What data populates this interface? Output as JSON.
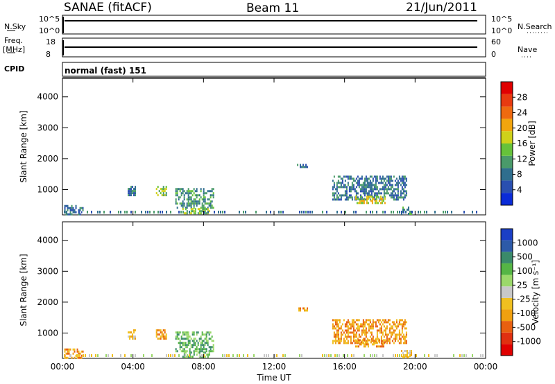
{
  "header": {
    "radar": "SANAE (fitACF)",
    "beam": "Beam 11",
    "date": "21/Jun/2011"
  },
  "param_panels": {
    "nsky_label": "N.Sky",
    "nsearch_label": "N.Search",
    "freq_label_1": "Freq.",
    "freq_label_2": "[MHz]",
    "nave_label": "Nave",
    "cpid_label": "CPID",
    "cpid_value": "normal (fast) 151",
    "noise_ticks_left": [
      "10^5",
      "10^0"
    ],
    "noise_ticks_right": [
      "10^5",
      "10^0"
    ],
    "freq_ticks": [
      "18",
      "8"
    ],
    "nave_ticks": [
      "60",
      "0"
    ]
  },
  "colors": {
    "power_scale": [
      "#0a2bd8",
      "#2a4fb0",
      "#2f6e8e",
      "#4a9a6a",
      "#66c23a",
      "#cfd11a",
      "#f2a50e",
      "#ef6a10",
      "#e83a10",
      "#e00000"
    ],
    "velocity_scale": [
      "#1b3fc6",
      "#2d5aa8",
      "#3a8a6a",
      "#55b545",
      "#9bd86a",
      "#c8c8c8",
      "#f0c020",
      "#f0a010",
      "#e86010",
      "#e03010",
      "#e00000"
    ]
  },
  "chart_data": [
    {
      "type": "heatmap",
      "name": "power",
      "xlabel": "Time UT",
      "ylabel": "Slant Range [km]",
      "xticks": [
        "00:00",
        "04:00",
        "08:00",
        "12:00",
        "16:00",
        "20:00",
        "00:00"
      ],
      "xlim_hours": [
        0,
        24
      ],
      "yticks": [
        1000,
        2000,
        3000,
        4000
      ],
      "ylim_km": [
        180,
        4600
      ],
      "colorbar_label": "Power [dB]",
      "colorbar_ticks": [
        "4",
        "8",
        "12",
        "16",
        "20",
        "24",
        "28"
      ],
      "colorbar_range": [
        0,
        30
      ],
      "echo_regions": [
        {
          "t0": 0.1,
          "t1": 1.2,
          "r0": 200,
          "r1": 500,
          "v": 8
        },
        {
          "t0": 3.7,
          "t1": 4.1,
          "r0": 820,
          "r1": 1120,
          "v": 6
        },
        {
          "t0": 5.3,
          "t1": 5.9,
          "r0": 850,
          "r1": 1120,
          "v": 13
        },
        {
          "t0": 6.4,
          "t1": 8.6,
          "r0": 380,
          "r1": 1050,
          "v": 9
        },
        {
          "t0": 6.8,
          "t1": 8.3,
          "r0": 220,
          "r1": 400,
          "v": 14
        },
        {
          "t0": 13.3,
          "t1": 13.9,
          "r0": 1700,
          "r1": 1830,
          "v": 7
        },
        {
          "t0": 15.3,
          "t1": 19.5,
          "r0": 700,
          "r1": 1450,
          "v": 6
        },
        {
          "t0": 16.6,
          "t1": 18.3,
          "r0": 580,
          "r1": 800,
          "v": 16
        },
        {
          "t0": 19.2,
          "t1": 19.8,
          "r0": 240,
          "r1": 450,
          "v": 10
        }
      ]
    },
    {
      "type": "heatmap",
      "name": "velocity",
      "xlabel": "Time UT",
      "ylabel": "Slant Range [km]",
      "xticks": [
        "00:00",
        "04:00",
        "08:00",
        "12:00",
        "16:00",
        "20:00",
        "00:00"
      ],
      "xlim_hours": [
        0,
        24
      ],
      "yticks": [
        1000,
        2000,
        3000,
        4000
      ],
      "ylim_km": [
        180,
        4600
      ],
      "colorbar_label": "Velocity [m s⁻¹]",
      "colorbar_ticks": [
        "1000",
        "500",
        "100",
        "25",
        "-25",
        "-100",
        "-500",
        "-1000"
      ],
      "echo_regions": [
        {
          "t0": 0.1,
          "t1": 1.2,
          "r0": 200,
          "r1": 500,
          "v": -150
        },
        {
          "t0": 3.7,
          "t1": 4.1,
          "r0": 820,
          "r1": 1120,
          "v": -80
        },
        {
          "t0": 5.3,
          "t1": 5.9,
          "r0": 850,
          "r1": 1120,
          "v": -200
        },
        {
          "t0": 6.4,
          "t1": 8.6,
          "r0": 380,
          "r1": 1050,
          "v": 40
        },
        {
          "t0": 6.8,
          "t1": 8.3,
          "r0": 220,
          "r1": 400,
          "v": 80
        },
        {
          "t0": 13.3,
          "t1": 13.9,
          "r0": 1700,
          "r1": 1830,
          "v": -300
        },
        {
          "t0": 15.3,
          "t1": 19.5,
          "r0": 700,
          "r1": 1450,
          "v": -250
        },
        {
          "t0": 16.6,
          "t1": 18.3,
          "r0": 580,
          "r1": 800,
          "v": -120
        },
        {
          "t0": 19.2,
          "t1": 19.8,
          "r0": 240,
          "r1": 450,
          "v": -60
        }
      ]
    }
  ]
}
